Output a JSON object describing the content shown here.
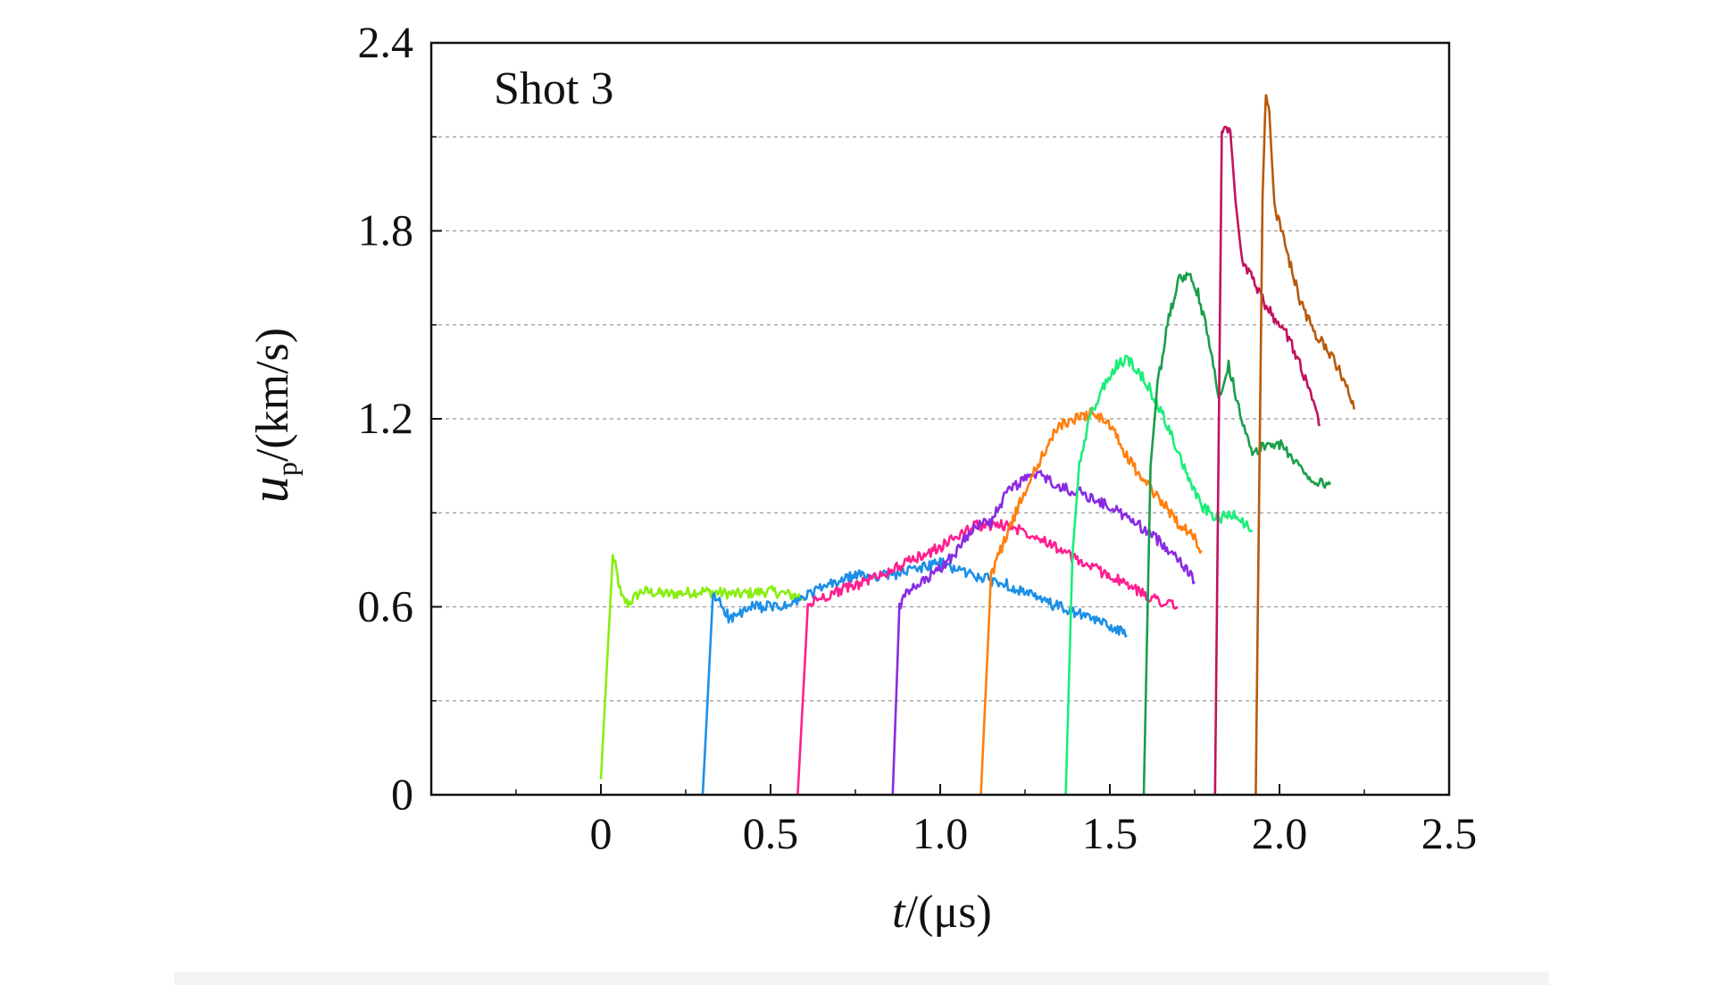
{
  "chart_data": {
    "type": "line",
    "annotation": "Shot 3",
    "xlabel_var": "t",
    "xlabel_unit": "/(μs)",
    "ylabel_var": "u",
    "ylabel_sub": "p",
    "ylabel_unit": "/(km/s)",
    "xlim": [
      -0.5,
      2.5
    ],
    "ylim": [
      0,
      2.4
    ],
    "xticks": [
      0,
      0.5,
      1.0,
      1.5,
      2.0,
      2.5
    ],
    "xtick_labels": [
      "0",
      "0.5",
      "1.0",
      "1.5",
      "2.0",
      "2.5"
    ],
    "yticks": [
      0,
      0.6,
      1.2,
      1.8,
      2.4
    ],
    "ytick_labels": [
      "0",
      "0.6",
      "1.2",
      "1.8",
      "2.4"
    ],
    "y_gridlines": [
      0.3,
      0.6,
      0.9,
      1.2,
      1.5,
      1.8,
      2.1
    ],
    "grid": "horizontal dashed",
    "series": [
      {
        "color": "#88ee11",
        "x": [
          0.0,
          0.035,
          0.045,
          0.06,
          0.08,
          0.12,
          0.2,
          0.3,
          0.4,
          0.5,
          0.6
        ],
        "y": [
          0.05,
          0.76,
          0.72,
          0.63,
          0.61,
          0.65,
          0.64,
          0.65,
          0.64,
          0.65,
          0.63
        ]
      },
      {
        "color": "#1e8fe6",
        "x": [
          0.3,
          0.33,
          0.35,
          0.38,
          0.45,
          0.55,
          0.65,
          0.75,
          0.85,
          1.0,
          1.1,
          1.2,
          1.3,
          1.4,
          1.5,
          1.55
        ],
        "y": [
          0.0,
          0.63,
          0.62,
          0.56,
          0.6,
          0.6,
          0.66,
          0.7,
          0.7,
          0.74,
          0.7,
          0.67,
          0.62,
          0.58,
          0.54,
          0.51
        ]
      },
      {
        "color": "#ff1f8f",
        "x": [
          0.58,
          0.61,
          0.63,
          0.7,
          0.8,
          0.9,
          1.0,
          1.1,
          1.2,
          1.3,
          1.4,
          1.5,
          1.6,
          1.7
        ],
        "y": [
          0.0,
          0.6,
          0.62,
          0.65,
          0.69,
          0.74,
          0.79,
          0.86,
          0.86,
          0.82,
          0.75,
          0.7,
          0.64,
          0.6
        ]
      },
      {
        "color": "#8a2be2",
        "x": [
          0.86,
          0.88,
          0.9,
          0.95,
          1.0,
          1.05,
          1.1,
          1.15,
          1.2,
          1.25,
          1.3,
          1.35,
          1.4,
          1.5,
          1.6,
          1.7,
          1.75
        ],
        "y": [
          0.0,
          0.6,
          0.64,
          0.68,
          0.72,
          0.78,
          0.86,
          0.87,
          0.97,
          1.01,
          1.02,
          0.98,
          0.97,
          0.92,
          0.85,
          0.76,
          0.68
        ]
      },
      {
        "color": "#ff7f0e",
        "x": [
          1.12,
          1.15,
          1.17,
          1.2,
          1.25,
          1.3,
          1.35,
          1.4,
          1.45,
          1.5,
          1.55,
          1.6,
          1.65,
          1.7,
          1.75,
          1.77
        ],
        "y": [
          0.0,
          0.7,
          0.76,
          0.84,
          0.97,
          1.08,
          1.18,
          1.2,
          1.22,
          1.18,
          1.08,
          1.0,
          0.94,
          0.87,
          0.82,
          0.78
        ]
      },
      {
        "color": "#1aee7a",
        "x": [
          1.37,
          1.39,
          1.41,
          1.44,
          1.48,
          1.52,
          1.55,
          1.58,
          1.62,
          1.67,
          1.72,
          1.77,
          1.82,
          1.87,
          1.92
        ],
        "y": [
          0.0,
          0.77,
          1.05,
          1.2,
          1.3,
          1.37,
          1.39,
          1.36,
          1.29,
          1.18,
          1.04,
          0.92,
          0.88,
          0.9,
          0.84
        ]
      },
      {
        "color": "#1a9e4a",
        "x": [
          1.6,
          1.62,
          1.64,
          1.67,
          1.7,
          1.73,
          1.76,
          1.79,
          1.82,
          1.85,
          1.88,
          1.92,
          1.96,
          2.0,
          2.05,
          2.1,
          2.15
        ],
        "y": [
          0.0,
          1.05,
          1.3,
          1.5,
          1.64,
          1.66,
          1.6,
          1.46,
          1.27,
          1.37,
          1.24,
          1.08,
          1.12,
          1.12,
          1.06,
          1.0,
          0.99
        ]
      },
      {
        "color": "#c0125e",
        "x": [
          1.81,
          1.83,
          1.84,
          1.855,
          1.87,
          1.89,
          1.92,
          1.95,
          1.98,
          2.02,
          2.06,
          2.1,
          2.12
        ],
        "y": [
          0.0,
          2.1,
          2.14,
          2.12,
          1.9,
          1.7,
          1.65,
          1.58,
          1.53,
          1.47,
          1.38,
          1.25,
          1.18
        ]
      },
      {
        "color": "#b85a0a",
        "x": [
          1.93,
          1.95,
          1.96,
          1.97,
          1.985,
          2.0,
          2.03,
          2.06,
          2.1,
          2.14,
          2.18,
          2.22
        ],
        "y": [
          0.0,
          1.9,
          2.25,
          2.18,
          1.88,
          1.82,
          1.7,
          1.58,
          1.48,
          1.42,
          1.35,
          1.23
        ]
      }
    ]
  }
}
